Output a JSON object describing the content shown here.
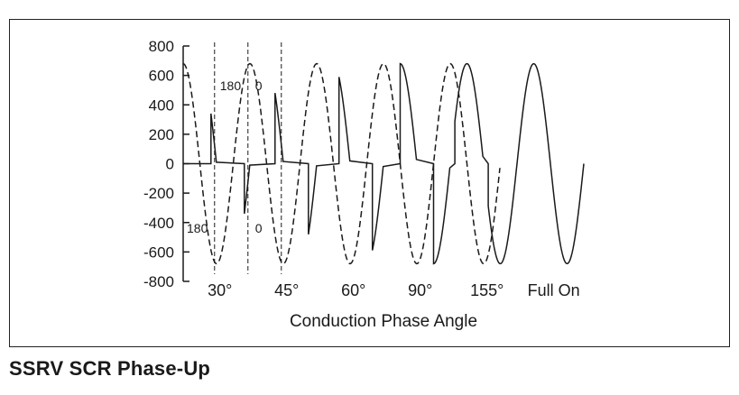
{
  "caption": "SSRV SCR Phase-Up",
  "chart_data": {
    "type": "line",
    "title": "",
    "xlabel": "Conduction Phase Angle",
    "ylabel": "",
    "ylim": [
      -800,
      800
    ],
    "yticks": [
      800,
      600,
      400,
      200,
      0,
      -200,
      -400,
      -600,
      -800
    ],
    "grid": false,
    "segment_labels": [
      "30°",
      "45°",
      "60°",
      "90°",
      "155°",
      "Full On"
    ],
    "conduction_angles_deg": [
      30,
      45,
      60,
      90,
      155,
      180
    ],
    "amplitude": 680,
    "annotations": [
      "180",
      "0",
      "180",
      "0"
    ],
    "series": [
      {
        "style": "dashed",
        "cycles": 5,
        "amplitude": 680
      },
      {
        "style": "solid",
        "cycles": 6,
        "amplitude": 680
      }
    ]
  }
}
